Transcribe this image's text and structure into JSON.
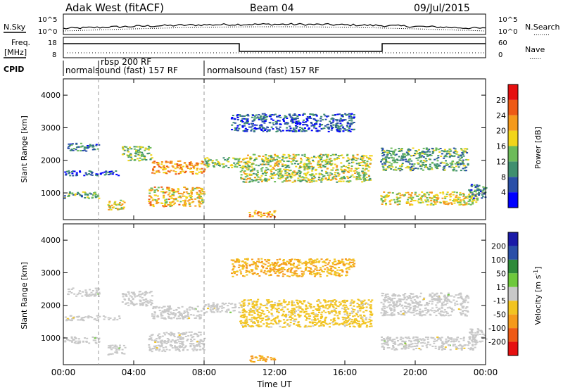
{
  "header": {
    "radar": "Adak West (fitACF)",
    "beam": "Beam 04",
    "date": "09/Jul/2015"
  },
  "noise_panel": {
    "left_label": "N.Sky",
    "right_label": "N.Search",
    "right_line": "........",
    "ytick_top": "10^5",
    "ytick_bottom": "10^0"
  },
  "freq_panel": {
    "left_label_1": "Freq.",
    "left_label_2": "[MHz]",
    "ytick_left": [
      "18",
      "8"
    ],
    "ytick_right": [
      "60",
      "0"
    ],
    "right_label": "Nave",
    "right_line": "......"
  },
  "cpid_panel": {
    "label": "CPID",
    "entries": [
      {
        "text": "normalsound (fast) 157 RF",
        "start_h": 0.0
      },
      {
        "text": "rbsp 200 RF",
        "start_h": 2.0
      },
      {
        "text": "normalsound (fast) 157 RF",
        "start_h": 8.0
      }
    ],
    "boundaries_h": [
      2.0,
      8.0
    ]
  },
  "colors": {
    "power": [
      "#0000ff",
      "#2a4fa8",
      "#3f8f6f",
      "#6dbb5a",
      "#f2d51a",
      "#f59a1c",
      "#ee5a15",
      "#e61010"
    ],
    "velocity": [
      "#e61010",
      "#ee5a15",
      "#f59a1c",
      "#f2c421",
      "#c8c8c8",
      "#c8c8c8",
      "#6ec83c",
      "#2e8a3a",
      "#2a4fa8",
      "#1a1aa8"
    ],
    "ground_scatter": "#c8c8c8"
  },
  "chart_data": [
    {
      "type": "heatmap",
      "title": "Power",
      "xlabel": "",
      "ylabel": "Slant Range [km]",
      "xlim": [
        0,
        24
      ],
      "ylim": [
        180,
        4500
      ],
      "yticks": [
        "1000",
        "2000",
        "3000",
        "4000"
      ],
      "colorbar": {
        "label": "Power [dB]",
        "ticks": [
          "4",
          "8",
          "12",
          "16",
          "20",
          "24",
          "28"
        ],
        "range": [
          0,
          32
        ]
      },
      "bands": [
        {
          "t": [
            0.2,
            2.0
          ],
          "range": [
            2300,
            2550
          ],
          "level": 8
        },
        {
          "t": [
            0.0,
            3.2
          ],
          "range": [
            1550,
            1700
          ],
          "level": 6
        },
        {
          "t": [
            0.0,
            2.0
          ],
          "range": [
            850,
            1050
          ],
          "level": 12
        },
        {
          "t": [
            2.5,
            3.5
          ],
          "range": [
            500,
            800
          ],
          "level": 18
        },
        {
          "t": [
            3.3,
            5.0
          ],
          "range": [
            2000,
            2450
          ],
          "level": 14
        },
        {
          "t": [
            4.8,
            8.0
          ],
          "range": [
            600,
            1200
          ],
          "level": 20
        },
        {
          "t": [
            5.0,
            8.0
          ],
          "range": [
            1600,
            2000
          ],
          "level": 22
        },
        {
          "t": [
            8.0,
            10.0
          ],
          "range": [
            1800,
            2100
          ],
          "level": 14
        },
        {
          "t": [
            9.5,
            16.5
          ],
          "range": [
            2900,
            3450
          ],
          "level": 6
        },
        {
          "t": [
            10.0,
            17.5
          ],
          "range": [
            1350,
            2200
          ],
          "level": 16
        },
        {
          "t": [
            10.5,
            12.0
          ],
          "range": [
            280,
            480
          ],
          "level": 22
        },
        {
          "t": [
            18.0,
            23.0
          ],
          "range": [
            1700,
            2400
          ],
          "level": 12
        },
        {
          "t": [
            18.0,
            23.5
          ],
          "range": [
            650,
            1050
          ],
          "level": 18
        },
        {
          "t": [
            23.0,
            24.0
          ],
          "range": [
            850,
            1300
          ],
          "level": 8
        }
      ]
    },
    {
      "type": "heatmap",
      "title": "Velocity",
      "xlabel": "Time UT",
      "ylabel": "Slant Range [km]",
      "xlim": [
        0,
        24
      ],
      "ylim": [
        180,
        4500
      ],
      "xticks": [
        "00:00",
        "04:00",
        "08:00",
        "12:00",
        "16:00",
        "20:00",
        "00:00"
      ],
      "yticks": [
        "1000",
        "2000",
        "3000",
        "4000"
      ],
      "colorbar": {
        "label": "Velocity [m s^-1]",
        "ticks": [
          "200",
          "100",
          "50",
          "15",
          "-15",
          "-50",
          "-100",
          "-200"
        ],
        "range": [
          -250,
          250
        ]
      },
      "bands": [
        {
          "t": [
            0.2,
            2.0
          ],
          "range": [
            2300,
            2550
          ],
          "level": 0
        },
        {
          "t": [
            0.0,
            3.2
          ],
          "range": [
            1550,
            1700
          ],
          "level": 0
        },
        {
          "t": [
            0.0,
            2.0
          ],
          "range": [
            850,
            1050
          ],
          "level": 0
        },
        {
          "t": [
            2.5,
            3.5
          ],
          "range": [
            500,
            800
          ],
          "level": 0
        },
        {
          "t": [
            3.3,
            5.0
          ],
          "range": [
            2000,
            2450
          ],
          "level": 0
        },
        {
          "t": [
            4.8,
            8.0
          ],
          "range": [
            600,
            1200
          ],
          "level": 0
        },
        {
          "t": [
            5.0,
            8.0
          ],
          "range": [
            1600,
            2000
          ],
          "level": 0
        },
        {
          "t": [
            8.0,
            10.0
          ],
          "range": [
            1800,
            2100
          ],
          "level": 0
        },
        {
          "t": [
            9.5,
            16.5
          ],
          "range": [
            2900,
            3450
          ],
          "level": -50
        },
        {
          "t": [
            10.0,
            17.5
          ],
          "range": [
            1350,
            2200
          ],
          "level": -30
        },
        {
          "t": [
            10.5,
            12.0
          ],
          "range": [
            280,
            480
          ],
          "level": -60
        },
        {
          "t": [
            18.0,
            23.0
          ],
          "range": [
            1700,
            2400
          ],
          "level": 0
        },
        {
          "t": [
            18.0,
            23.5
          ],
          "range": [
            650,
            1050
          ],
          "level": 0
        },
        {
          "t": [
            23.0,
            24.0
          ],
          "range": [
            850,
            1300
          ],
          "level": 0
        }
      ]
    }
  ]
}
